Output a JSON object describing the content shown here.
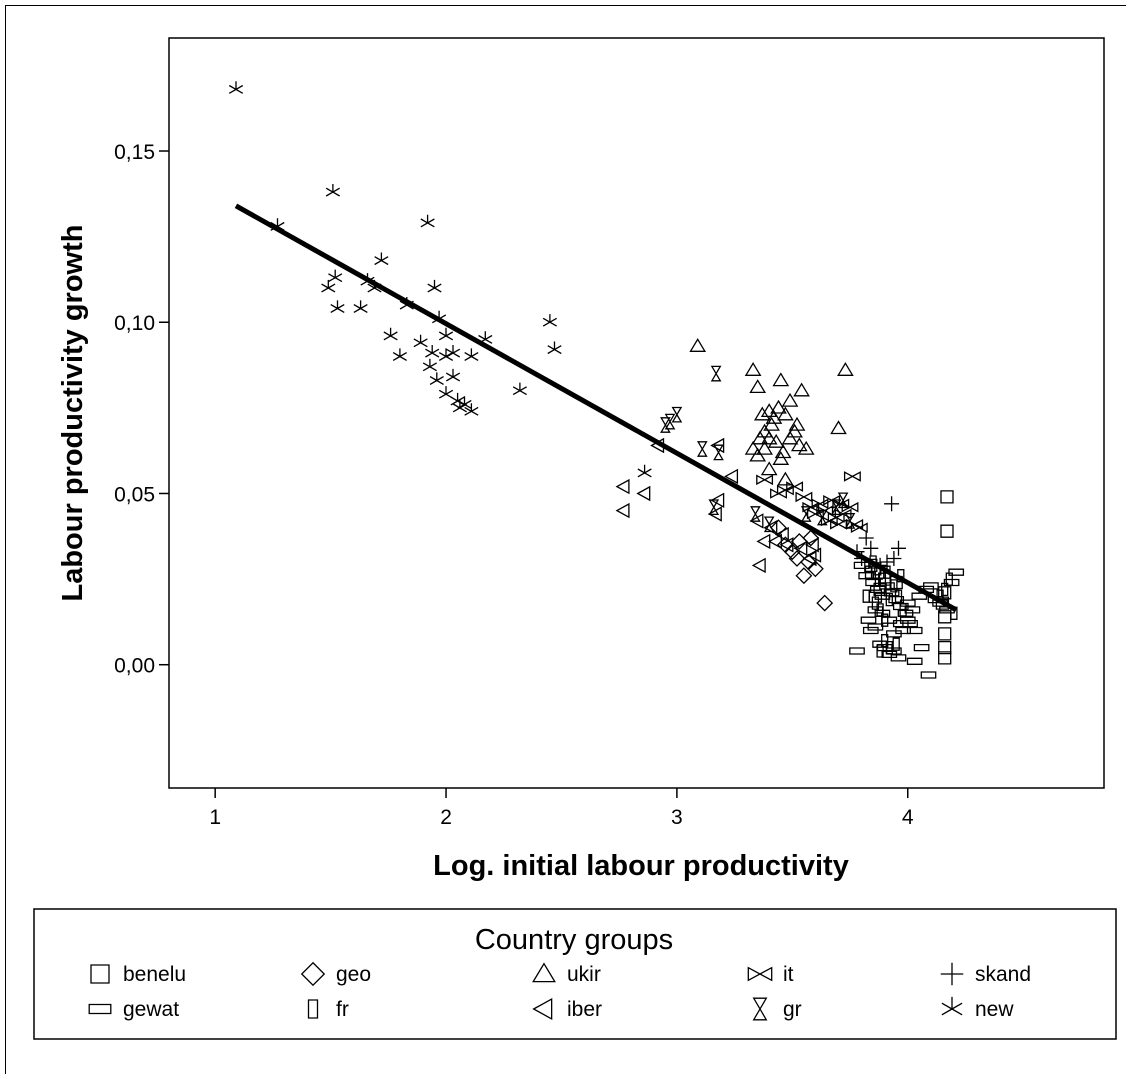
{
  "chart_data": {
    "type": "scatter",
    "title": "",
    "xlabel": "Log. initial labour productivity",
    "ylabel": "Labour productivity growth",
    "xlim": [
      0.8,
      4.85
    ],
    "ylim": [
      -0.036,
      0.183
    ],
    "x_ticks": [
      1,
      2,
      3,
      4
    ],
    "x_tick_labels": [
      "1",
      "2",
      "3",
      "4"
    ],
    "y_ticks": [
      0.0,
      0.05,
      0.1,
      0.15
    ],
    "y_tick_labels": [
      "0,00",
      "0,05",
      "0,10",
      "0,15"
    ],
    "grid": false,
    "fit_line": {
      "x": [
        1.09,
        4.21
      ],
      "y": [
        0.134,
        0.016
      ]
    },
    "legend": {
      "title": "Country groups",
      "placement": "bottom",
      "entries": [
        {
          "name": "benelu",
          "marker": "square"
        },
        {
          "name": "geo",
          "marker": "diamond"
        },
        {
          "name": "ukir",
          "marker": "triangle-up"
        },
        {
          "name": "it",
          "marker": "bowtie"
        },
        {
          "name": "skand",
          "marker": "plus"
        },
        {
          "name": "gewat",
          "marker": "rect-wide"
        },
        {
          "name": "fr",
          "marker": "rect-tall"
        },
        {
          "name": "iber",
          "marker": "triangle-left"
        },
        {
          "name": "gr",
          "marker": "hourglass"
        },
        {
          "name": "new",
          "marker": "asterisk"
        }
      ]
    },
    "series": [
      {
        "name": "new",
        "marker": "asterisk",
        "points": [
          [
            1.09,
            0.168
          ],
          [
            1.27,
            0.128
          ],
          [
            1.51,
            0.138
          ],
          [
            1.49,
            0.11
          ],
          [
            1.52,
            0.113
          ],
          [
            1.53,
            0.104
          ],
          [
            1.63,
            0.104
          ],
          [
            1.66,
            0.112
          ],
          [
            1.69,
            0.11
          ],
          [
            1.72,
            0.118
          ],
          [
            1.76,
            0.096
          ],
          [
            1.8,
            0.09
          ],
          [
            1.83,
            0.105
          ],
          [
            1.89,
            0.094
          ],
          [
            1.92,
            0.129
          ],
          [
            1.95,
            0.11
          ],
          [
            1.94,
            0.091
          ],
          [
            1.97,
            0.101
          ],
          [
            1.93,
            0.087
          ],
          [
            1.96,
            0.083
          ],
          [
            2.0,
            0.079
          ],
          [
            2.0,
            0.096
          ],
          [
            2.0,
            0.09
          ],
          [
            2.03,
            0.091
          ],
          [
            2.03,
            0.084
          ],
          [
            2.05,
            0.077
          ],
          [
            2.06,
            0.075
          ],
          [
            2.08,
            0.076
          ],
          [
            2.11,
            0.074
          ],
          [
            2.11,
            0.09
          ],
          [
            2.17,
            0.095
          ],
          [
            2.32,
            0.08
          ],
          [
            2.45,
            0.1
          ],
          [
            2.47,
            0.092
          ],
          [
            2.86,
            0.056
          ]
        ]
      },
      {
        "name": "ukir",
        "marker": "triangle-up",
        "points": [
          [
            3.09,
            0.093
          ],
          [
            3.33,
            0.086
          ],
          [
            3.45,
            0.083
          ],
          [
            3.54,
            0.08
          ],
          [
            3.73,
            0.086
          ],
          [
            3.7,
            0.069
          ],
          [
            3.35,
            0.081
          ],
          [
            3.37,
            0.073
          ],
          [
            3.4,
            0.074
          ],
          [
            3.42,
            0.072
          ],
          [
            3.44,
            0.075
          ],
          [
            3.47,
            0.073
          ],
          [
            3.49,
            0.077
          ],
          [
            3.52,
            0.07
          ],
          [
            3.38,
            0.068
          ],
          [
            3.4,
            0.066
          ],
          [
            3.41,
            0.07
          ],
          [
            3.33,
            0.063
          ],
          [
            3.35,
            0.061
          ],
          [
            3.36,
            0.066
          ],
          [
            3.38,
            0.063
          ],
          [
            3.43,
            0.065
          ],
          [
            3.46,
            0.062
          ],
          [
            3.49,
            0.066
          ],
          [
            3.51,
            0.068
          ],
          [
            3.53,
            0.064
          ],
          [
            3.56,
            0.063
          ],
          [
            3.4,
            0.057
          ],
          [
            3.45,
            0.06
          ],
          [
            3.47,
            0.054
          ]
        ]
      },
      {
        "name": "it",
        "marker": "bowtie",
        "points": [
          [
            3.76,
            0.055
          ],
          [
            3.38,
            0.054
          ],
          [
            3.44,
            0.05
          ],
          [
            3.47,
            0.051
          ],
          [
            3.51,
            0.052
          ],
          [
            3.55,
            0.049
          ],
          [
            3.58,
            0.046
          ],
          [
            3.6,
            0.044
          ],
          [
            3.62,
            0.047
          ],
          [
            3.64,
            0.045
          ],
          [
            3.67,
            0.048
          ],
          [
            3.69,
            0.043
          ],
          [
            3.71,
            0.047
          ],
          [
            3.72,
            0.044
          ],
          [
            3.75,
            0.046
          ],
          [
            3.77,
            0.041
          ],
          [
            3.79,
            0.04
          ],
          [
            3.66,
            0.042
          ],
          [
            3.7,
            0.041
          ]
        ]
      },
      {
        "name": "gr",
        "marker": "hourglass",
        "points": [
          [
            2.95,
            0.07
          ],
          [
            2.97,
            0.071
          ],
          [
            3.0,
            0.073
          ],
          [
            3.11,
            0.063
          ],
          [
            3.17,
            0.085
          ],
          [
            3.18,
            0.062
          ],
          [
            3.16,
            0.046
          ],
          [
            3.34,
            0.044
          ],
          [
            3.4,
            0.041
          ],
          [
            3.56,
            0.044
          ],
          [
            3.63,
            0.043
          ],
          [
            3.69,
            0.046
          ],
          [
            3.72,
            0.048
          ],
          [
            3.75,
            0.042
          ]
        ]
      },
      {
        "name": "iber",
        "marker": "triangle-left",
        "points": [
          [
            2.77,
            0.052
          ],
          [
            2.77,
            0.045
          ],
          [
            2.86,
            0.05
          ],
          [
            2.92,
            0.064
          ],
          [
            3.18,
            0.064
          ],
          [
            3.18,
            0.048
          ],
          [
            3.17,
            0.044
          ],
          [
            3.24,
            0.055
          ],
          [
            3.35,
            0.042
          ],
          [
            3.38,
            0.036
          ],
          [
            3.36,
            0.029
          ],
          [
            3.41,
            0.04
          ],
          [
            3.43,
            0.036
          ],
          [
            3.46,
            0.038
          ],
          [
            3.48,
            0.035
          ],
          [
            3.54,
            0.034
          ],
          [
            3.58,
            0.031
          ],
          [
            3.59,
            0.035
          ],
          [
            3.6,
            0.032
          ]
        ]
      },
      {
        "name": "geo",
        "marker": "diamond",
        "points": [
          [
            3.44,
            0.04
          ],
          [
            3.5,
            0.033
          ],
          [
            3.52,
            0.031
          ],
          [
            3.55,
            0.026
          ],
          [
            3.57,
            0.03
          ],
          [
            3.58,
            0.037
          ],
          [
            3.6,
            0.028
          ],
          [
            3.64,
            0.018
          ],
          [
            3.47,
            0.035
          ],
          [
            3.53,
            0.036
          ]
        ]
      },
      {
        "name": "skand",
        "marker": "plus",
        "points": [
          [
            3.78,
            0.033
          ],
          [
            3.82,
            0.037
          ],
          [
            3.84,
            0.034
          ],
          [
            3.88,
            0.029
          ],
          [
            3.91,
            0.03
          ],
          [
            3.93,
            0.047
          ],
          [
            3.94,
            0.031
          ],
          [
            3.96,
            0.034
          ],
          [
            3.86,
            0.025
          ],
          [
            3.8,
            0.031
          ]
        ]
      },
      {
        "name": "benelu",
        "marker": "square",
        "points": [
          [
            4.17,
            0.049
          ],
          [
            4.17,
            0.039
          ],
          [
            3.84,
            0.029
          ],
          [
            3.87,
            0.027
          ],
          [
            3.9,
            0.025
          ],
          [
            3.88,
            0.022
          ],
          [
            4.16,
            0.021
          ],
          [
            4.15,
            0.018
          ],
          [
            4.16,
            0.014
          ],
          [
            4.16,
            0.009
          ],
          [
            4.16,
            0.005
          ],
          [
            4.16,
            0.002
          ],
          [
            3.95,
            0.024
          ],
          [
            3.86,
            0.02
          ]
        ]
      },
      {
        "name": "gewat",
        "marker": "rect-wide",
        "points": [
          [
            3.8,
            0.029
          ],
          [
            3.82,
            0.026
          ],
          [
            3.85,
            0.024
          ],
          [
            3.87,
            0.022
          ],
          [
            3.89,
            0.02
          ],
          [
            3.91,
            0.023
          ],
          [
            3.93,
            0.021
          ],
          [
            3.95,
            0.019
          ],
          [
            3.97,
            0.017
          ],
          [
            3.99,
            0.015
          ],
          [
            4.01,
            0.012
          ],
          [
            4.03,
            0.01
          ],
          [
            4.05,
            0.02
          ],
          [
            4.08,
            0.022
          ],
          [
            4.1,
            0.023
          ],
          [
            4.12,
            0.019
          ],
          [
            4.14,
            0.018
          ],
          [
            4.17,
            0.016
          ],
          [
            4.19,
            0.024
          ],
          [
            4.21,
            0.027
          ],
          [
            3.84,
            0.01
          ],
          [
            3.86,
            0.011
          ],
          [
            3.88,
            0.006
          ],
          [
            3.9,
            0.005
          ],
          [
            3.92,
            0.003
          ],
          [
            3.94,
            0.004
          ],
          [
            3.96,
            0.002
          ],
          [
            3.98,
            0.01
          ],
          [
            4.0,
            0.013
          ],
          [
            4.02,
            0.016
          ],
          [
            4.06,
            0.005
          ],
          [
            4.09,
            -0.003
          ],
          [
            3.78,
            0.004
          ],
          [
            3.83,
            0.013
          ],
          [
            3.86,
            0.016
          ],
          [
            3.89,
            0.015
          ],
          [
            3.92,
            0.013
          ],
          [
            3.94,
            0.009
          ],
          [
            3.97,
            0.012
          ],
          [
            4.0,
            0.018
          ],
          [
            4.03,
            0.001
          ]
        ]
      },
      {
        "name": "fr",
        "marker": "rect-tall",
        "points": [
          [
            3.83,
            0.027
          ],
          [
            3.85,
            0.03
          ],
          [
            3.87,
            0.028
          ],
          [
            3.89,
            0.025
          ],
          [
            3.91,
            0.027
          ],
          [
            3.86,
            0.018
          ],
          [
            3.88,
            0.016
          ],
          [
            3.9,
            0.013
          ],
          [
            3.92,
            0.019
          ],
          [
            3.94,
            0.023
          ],
          [
            3.96,
            0.02
          ],
          [
            3.98,
            0.016
          ],
          [
            3.88,
            0.004
          ],
          [
            3.9,
            0.007
          ],
          [
            3.92,
            0.005
          ],
          [
            3.95,
            0.006
          ],
          [
            4.14,
            0.02
          ],
          [
            4.16,
            0.022
          ],
          [
            4.18,
            0.025
          ],
          [
            4.2,
            0.015
          ],
          [
            3.82,
            0.02
          ],
          [
            3.97,
            0.026
          ]
        ]
      }
    ]
  }
}
